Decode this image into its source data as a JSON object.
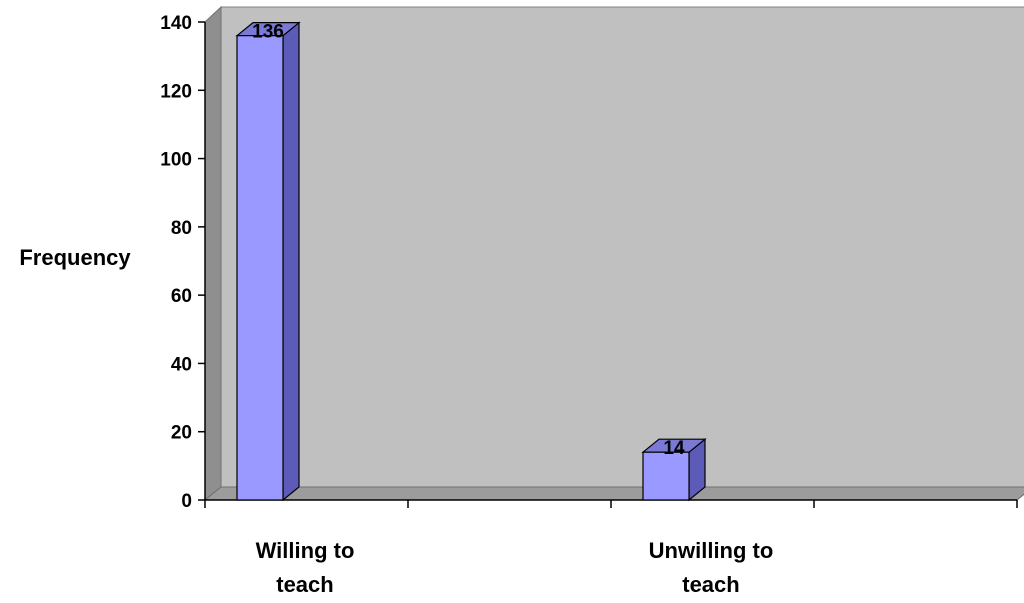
{
  "chart_data": {
    "type": "bar",
    "categories": [
      "Willing to teach",
      "Unwilling to teach"
    ],
    "category_lines": [
      [
        "Willing to",
        "teach"
      ],
      [
        "Unwilling to",
        "teach"
      ]
    ],
    "values": [
      136,
      14
    ],
    "data_labels": [
      "136",
      "14"
    ],
    "ylabel": "Frequency",
    "xlabel": "",
    "title": "",
    "ylim": [
      0,
      140
    ],
    "y_ticks": [
      0,
      20,
      40,
      60,
      80,
      100,
      120,
      140
    ],
    "grid": false,
    "legend": "none",
    "style": "3d-clustered-column",
    "colors": {
      "bar_front": "#9999ff",
      "bar_side": "#5c5cb8",
      "bar_top": "#7a7ad6",
      "bar_edge": "#000000",
      "back_wall": "#c0c0c0",
      "side_wall": "#8f8f8f",
      "floor": "#9c9c9c",
      "axis": "#000000"
    }
  }
}
